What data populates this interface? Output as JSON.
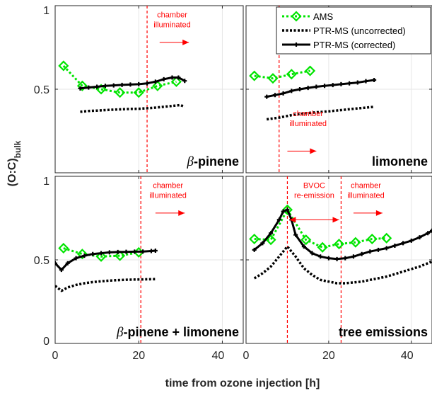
{
  "chart_data": [
    {
      "type": "line",
      "panel_label": "β-pinene",
      "panel_label_italic_prefix": "β",
      "panel_label_rest": "-pinene",
      "xlim": [
        0,
        45
      ],
      "ylim": [
        0,
        1
      ],
      "xticks": [],
      "yticks": [
        "0.5",
        "1"
      ],
      "grid": true,
      "show_legend": false,
      "series": [
        {
          "name": "AMS",
          "x": [
            2,
            6.5,
            11,
            15.5,
            20,
            24.5,
            29
          ],
          "y": [
            0.64,
            0.52,
            0.5,
            0.48,
            0.48,
            0.52,
            0.545
          ]
        },
        {
          "name": "PTR-MS (uncorrected)",
          "x": [
            6,
            8,
            10,
            12,
            14,
            16,
            18,
            20,
            22,
            24,
            26,
            28,
            30,
            31
          ],
          "y": [
            0.365,
            0.37,
            0.372,
            0.375,
            0.378,
            0.38,
            0.382,
            0.383,
            0.386,
            0.39,
            0.395,
            0.4,
            0.405,
            0.395
          ]
        },
        {
          "name": "PTR-MS (corrected)",
          "x": [
            6,
            8,
            10,
            12,
            14,
            16,
            18,
            20,
            22,
            24,
            26,
            28,
            29.5,
            31
          ],
          "y": [
            0.505,
            0.51,
            0.515,
            0.52,
            0.523,
            0.526,
            0.528,
            0.53,
            0.535,
            0.545,
            0.56,
            0.57,
            0.57,
            0.55
          ]
        }
      ],
      "vlines": [
        {
          "x": 22
        }
      ],
      "annotations": [
        {
          "text": "chamber\nilluminated",
          "x": 28,
          "y": 0.93
        },
        {
          "arrow": "right",
          "x1": 25,
          "x2": 32,
          "y": 0.78
        }
      ]
    },
    {
      "type": "line",
      "panel_label": "limonene",
      "xlim": [
        0,
        45
      ],
      "ylim": [
        0,
        1
      ],
      "xticks": [],
      "yticks": [],
      "grid": true,
      "show_legend": true,
      "legend_position": "top-right",
      "series": [
        {
          "name": "AMS",
          "x": [
            2,
            6.5,
            11,
            15.5
          ],
          "y": [
            0.58,
            0.565,
            0.59,
            0.61
          ]
        },
        {
          "name": "PTR-MS (uncorrected)",
          "x": [
            5,
            8,
            11,
            14,
            17,
            20,
            23,
            26,
            29,
            31
          ],
          "y": [
            0.32,
            0.33,
            0.345,
            0.355,
            0.362,
            0.368,
            0.375,
            0.383,
            0.39,
            0.395
          ]
        },
        {
          "name": "PTR-MS (corrected)",
          "x": [
            5,
            7,
            9,
            11,
            13,
            15,
            17,
            19,
            21,
            23,
            25,
            27,
            29,
            31
          ],
          "y": [
            0.455,
            0.465,
            0.475,
            0.49,
            0.5,
            0.508,
            0.515,
            0.52,
            0.525,
            0.53,
            0.535,
            0.54,
            0.548,
            0.555
          ]
        }
      ],
      "vlines": [
        {
          "x": 8
        }
      ],
      "annotations": [
        {
          "text": "chamber\nilluminated",
          "x": 15,
          "y": 0.34
        },
        {
          "arrow": "right",
          "x1": 10,
          "x2": 17,
          "y": 0.13
        }
      ]
    },
    {
      "type": "line",
      "panel_label": "β-pinene + limonene",
      "panel_label_italic_prefix": "β",
      "panel_label_rest": "-pinene + limonene",
      "xlim": [
        0,
        45
      ],
      "ylim": [
        0,
        1
      ],
      "xticks": [
        "0",
        "20",
        "40"
      ],
      "yticks": [
        "0",
        "0.5",
        "1"
      ],
      "grid": true,
      "show_legend": false,
      "series": [
        {
          "name": "AMS",
          "x": [
            2,
            6.5,
            11,
            15.5,
            20
          ],
          "y": [
            0.57,
            0.535,
            0.52,
            0.525,
            0.545
          ]
        },
        {
          "name": "PTR-MS (uncorrected)",
          "x": [
            0,
            1.5,
            3,
            5,
            7,
            9,
            11,
            13,
            15,
            17,
            19,
            21,
            24
          ],
          "y": [
            0.345,
            0.315,
            0.335,
            0.35,
            0.36,
            0.367,
            0.372,
            0.376,
            0.379,
            0.381,
            0.382,
            0.383,
            0.385
          ]
        },
        {
          "name": "PTR-MS (corrected)",
          "x": [
            0,
            1.5,
            3,
            5,
            7,
            9,
            11,
            13,
            15,
            17,
            19,
            21,
            23,
            24
          ],
          "y": [
            0.48,
            0.44,
            0.48,
            0.51,
            0.525,
            0.535,
            0.54,
            0.545,
            0.547,
            0.548,
            0.549,
            0.55,
            0.553,
            0.555
          ]
        }
      ],
      "vlines": [
        {
          "x": 20.5
        }
      ],
      "annotations": [
        {
          "text": "chamber\nilluminated",
          "x": 27,
          "y": 0.93
        },
        {
          "arrow": "right",
          "x1": 24,
          "x2": 31,
          "y": 0.78
        }
      ]
    },
    {
      "type": "line",
      "panel_label": "tree emissions",
      "xlim": [
        0,
        45
      ],
      "ylim": [
        0,
        1
      ],
      "xticks": [
        "0",
        "20",
        "40"
      ],
      "yticks": [],
      "grid": true,
      "show_legend": false,
      "series": [
        {
          "name": "AMS",
          "x": [
            2,
            6,
            10,
            14.5,
            18.5,
            22.5,
            26.5,
            30.5,
            34
          ],
          "y": [
            0.625,
            0.62,
            0.8,
            0.62,
            0.575,
            0.595,
            0.605,
            0.625,
            0.63
          ]
        },
        {
          "name": "PTR-MS (uncorrected)",
          "x": [
            2,
            4,
            6,
            8,
            10,
            12,
            14,
            16,
            18,
            20,
            22,
            24,
            26,
            28,
            30,
            32,
            34,
            36,
            38,
            40,
            42,
            44,
            45
          ],
          "y": [
            0.39,
            0.42,
            0.46,
            0.52,
            0.58,
            0.52,
            0.45,
            0.41,
            0.38,
            0.37,
            0.36,
            0.36,
            0.365,
            0.37,
            0.38,
            0.39,
            0.4,
            0.415,
            0.43,
            0.445,
            0.46,
            0.48,
            0.49
          ]
        },
        {
          "name": "PTR-MS (corrected)",
          "x": [
            2,
            4,
            6,
            8,
            9,
            10,
            11,
            12,
            14,
            16,
            18,
            20,
            22,
            24,
            26,
            28,
            30,
            32,
            34,
            36,
            38,
            40,
            42,
            44,
            45
          ],
          "y": [
            0.56,
            0.6,
            0.66,
            0.74,
            0.79,
            0.8,
            0.74,
            0.65,
            0.58,
            0.54,
            0.52,
            0.51,
            0.505,
            0.51,
            0.52,
            0.535,
            0.55,
            0.56,
            0.57,
            0.585,
            0.6,
            0.615,
            0.635,
            0.66,
            0.675
          ]
        }
      ],
      "vlines": [
        {
          "x": 10
        },
        {
          "x": 23
        }
      ],
      "annotations": [
        {
          "text": "BVOC\nre-emission",
          "x": 16.5,
          "y": 0.93
        },
        {
          "text": "chamber\nilluminated",
          "x": 29,
          "y": 0.93
        },
        {
          "arrow": "both",
          "x1": 10.5,
          "x2": 22.5,
          "y": 0.74
        },
        {
          "arrow": "right",
          "x1": 26,
          "x2": 33,
          "y": 0.78
        }
      ]
    }
  ],
  "figure": {
    "ylabel_main": "(O:C)",
    "ylabel_sub": "bulk",
    "xlabel": "time from ozone injection [h]"
  },
  "legend": {
    "entries": [
      {
        "label": "AMS",
        "key": "AMS"
      },
      {
        "label": "PTR-MS (uncorrected)",
        "key": "PTR-MS (uncorrected)"
      },
      {
        "label": "PTR-MS (corrected)",
        "key": "PTR-MS (corrected)"
      }
    ]
  },
  "colors": {
    "AMS": "#00e400",
    "PTR-MS (uncorrected)": "#000000",
    "PTR-MS (corrected)": "#000000",
    "annotation": "#ff0000",
    "grid": "#e6e6e6",
    "axis": "#262626"
  }
}
